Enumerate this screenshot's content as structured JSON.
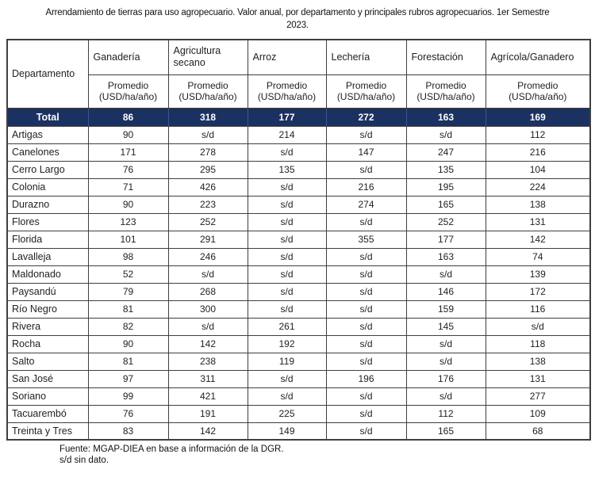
{
  "title": "Arrendamiento de tierras para uso agropecuario. Valor anual, por departamento y principales rubros agropecuarios. 1er Semestre\n2023.",
  "table": {
    "corner_header": "Departamento",
    "columns": [
      {
        "label": "Ganadería",
        "sub": "Promedio\n(USD/ha/año)"
      },
      {
        "label": "Agricultura secano",
        "sub": "Promedio\n(USD/ha/año)"
      },
      {
        "label": "Arroz",
        "sub": "Promedio\n(USD/ha/año)"
      },
      {
        "label": "Lechería",
        "sub": "Promedio\n(USD/ha/año)"
      },
      {
        "label": "Forestación",
        "sub": "Promedio\n(USD/ha/año)"
      },
      {
        "label": "Agrícola/Ganadero",
        "sub": "Promedio\n(USD/ha/año)"
      }
    ],
    "total_row": {
      "label": "Total",
      "values": [
        "86",
        "318",
        "177",
        "272",
        "163",
        "169"
      ]
    },
    "rows": [
      {
        "label": "Artigas",
        "values": [
          "90",
          "s/d",
          "214",
          "s/d",
          "s/d",
          "112"
        ]
      },
      {
        "label": "Canelones",
        "values": [
          "171",
          "278",
          "s/d",
          "147",
          "247",
          "216"
        ]
      },
      {
        "label": "Cerro Largo",
        "values": [
          "76",
          "295",
          "135",
          "s/d",
          "135",
          "104"
        ]
      },
      {
        "label": "Colonia",
        "values": [
          "71",
          "426",
          "s/d",
          "216",
          "195",
          "224"
        ]
      },
      {
        "label": "Durazno",
        "values": [
          "90",
          "223",
          "s/d",
          "274",
          "165",
          "138"
        ]
      },
      {
        "label": "Flores",
        "values": [
          "123",
          "252",
          "s/d",
          "s/d",
          "252",
          "131"
        ]
      },
      {
        "label": "Florida",
        "values": [
          "101",
          "291",
          "s/d",
          "355",
          "177",
          "142"
        ]
      },
      {
        "label": "Lavalleja",
        "values": [
          "98",
          "246",
          "s/d",
          "s/d",
          "163",
          "74"
        ]
      },
      {
        "label": "Maldonado",
        "values": [
          "52",
          "s/d",
          "s/d",
          "s/d",
          "s/d",
          "139"
        ]
      },
      {
        "label": "Paysandú",
        "values": [
          "79",
          "268",
          "s/d",
          "s/d",
          "146",
          "172"
        ]
      },
      {
        "label": "Río Negro",
        "values": [
          "81",
          "300",
          "s/d",
          "s/d",
          "159",
          "116"
        ]
      },
      {
        "label": "Rivera",
        "values": [
          "82",
          "s/d",
          "261",
          "s/d",
          "145",
          "s/d"
        ]
      },
      {
        "label": "Rocha",
        "values": [
          "90",
          "142",
          "192",
          "s/d",
          "s/d",
          "118"
        ]
      },
      {
        "label": "Salto",
        "values": [
          "81",
          "238",
          "119",
          "s/d",
          "s/d",
          "138"
        ]
      },
      {
        "label": "San José",
        "values": [
          "97",
          "311",
          "s/d",
          "196",
          "176",
          "131"
        ]
      },
      {
        "label": "Soriano",
        "values": [
          "99",
          "421",
          "s/d",
          "s/d",
          "s/d",
          "277"
        ]
      },
      {
        "label": "Tacuarembó",
        "values": [
          "76",
          "191",
          "225",
          "s/d",
          "112",
          "109"
        ]
      },
      {
        "label": "Treinta y Tres",
        "values": [
          "83",
          "142",
          "149",
          "s/d",
          "165",
          "68"
        ]
      }
    ]
  },
  "footer": {
    "source": "Fuente: MGAP-DIEA en base a información de la DGR.",
    "note": "s/d sin dato."
  },
  "colors": {
    "total_row_bg": "#1b3161",
    "total_row_text": "#ffffff",
    "total_row_divider": "#3b5694",
    "border": "#3f3f3f",
    "text": "#1f1f1f"
  }
}
